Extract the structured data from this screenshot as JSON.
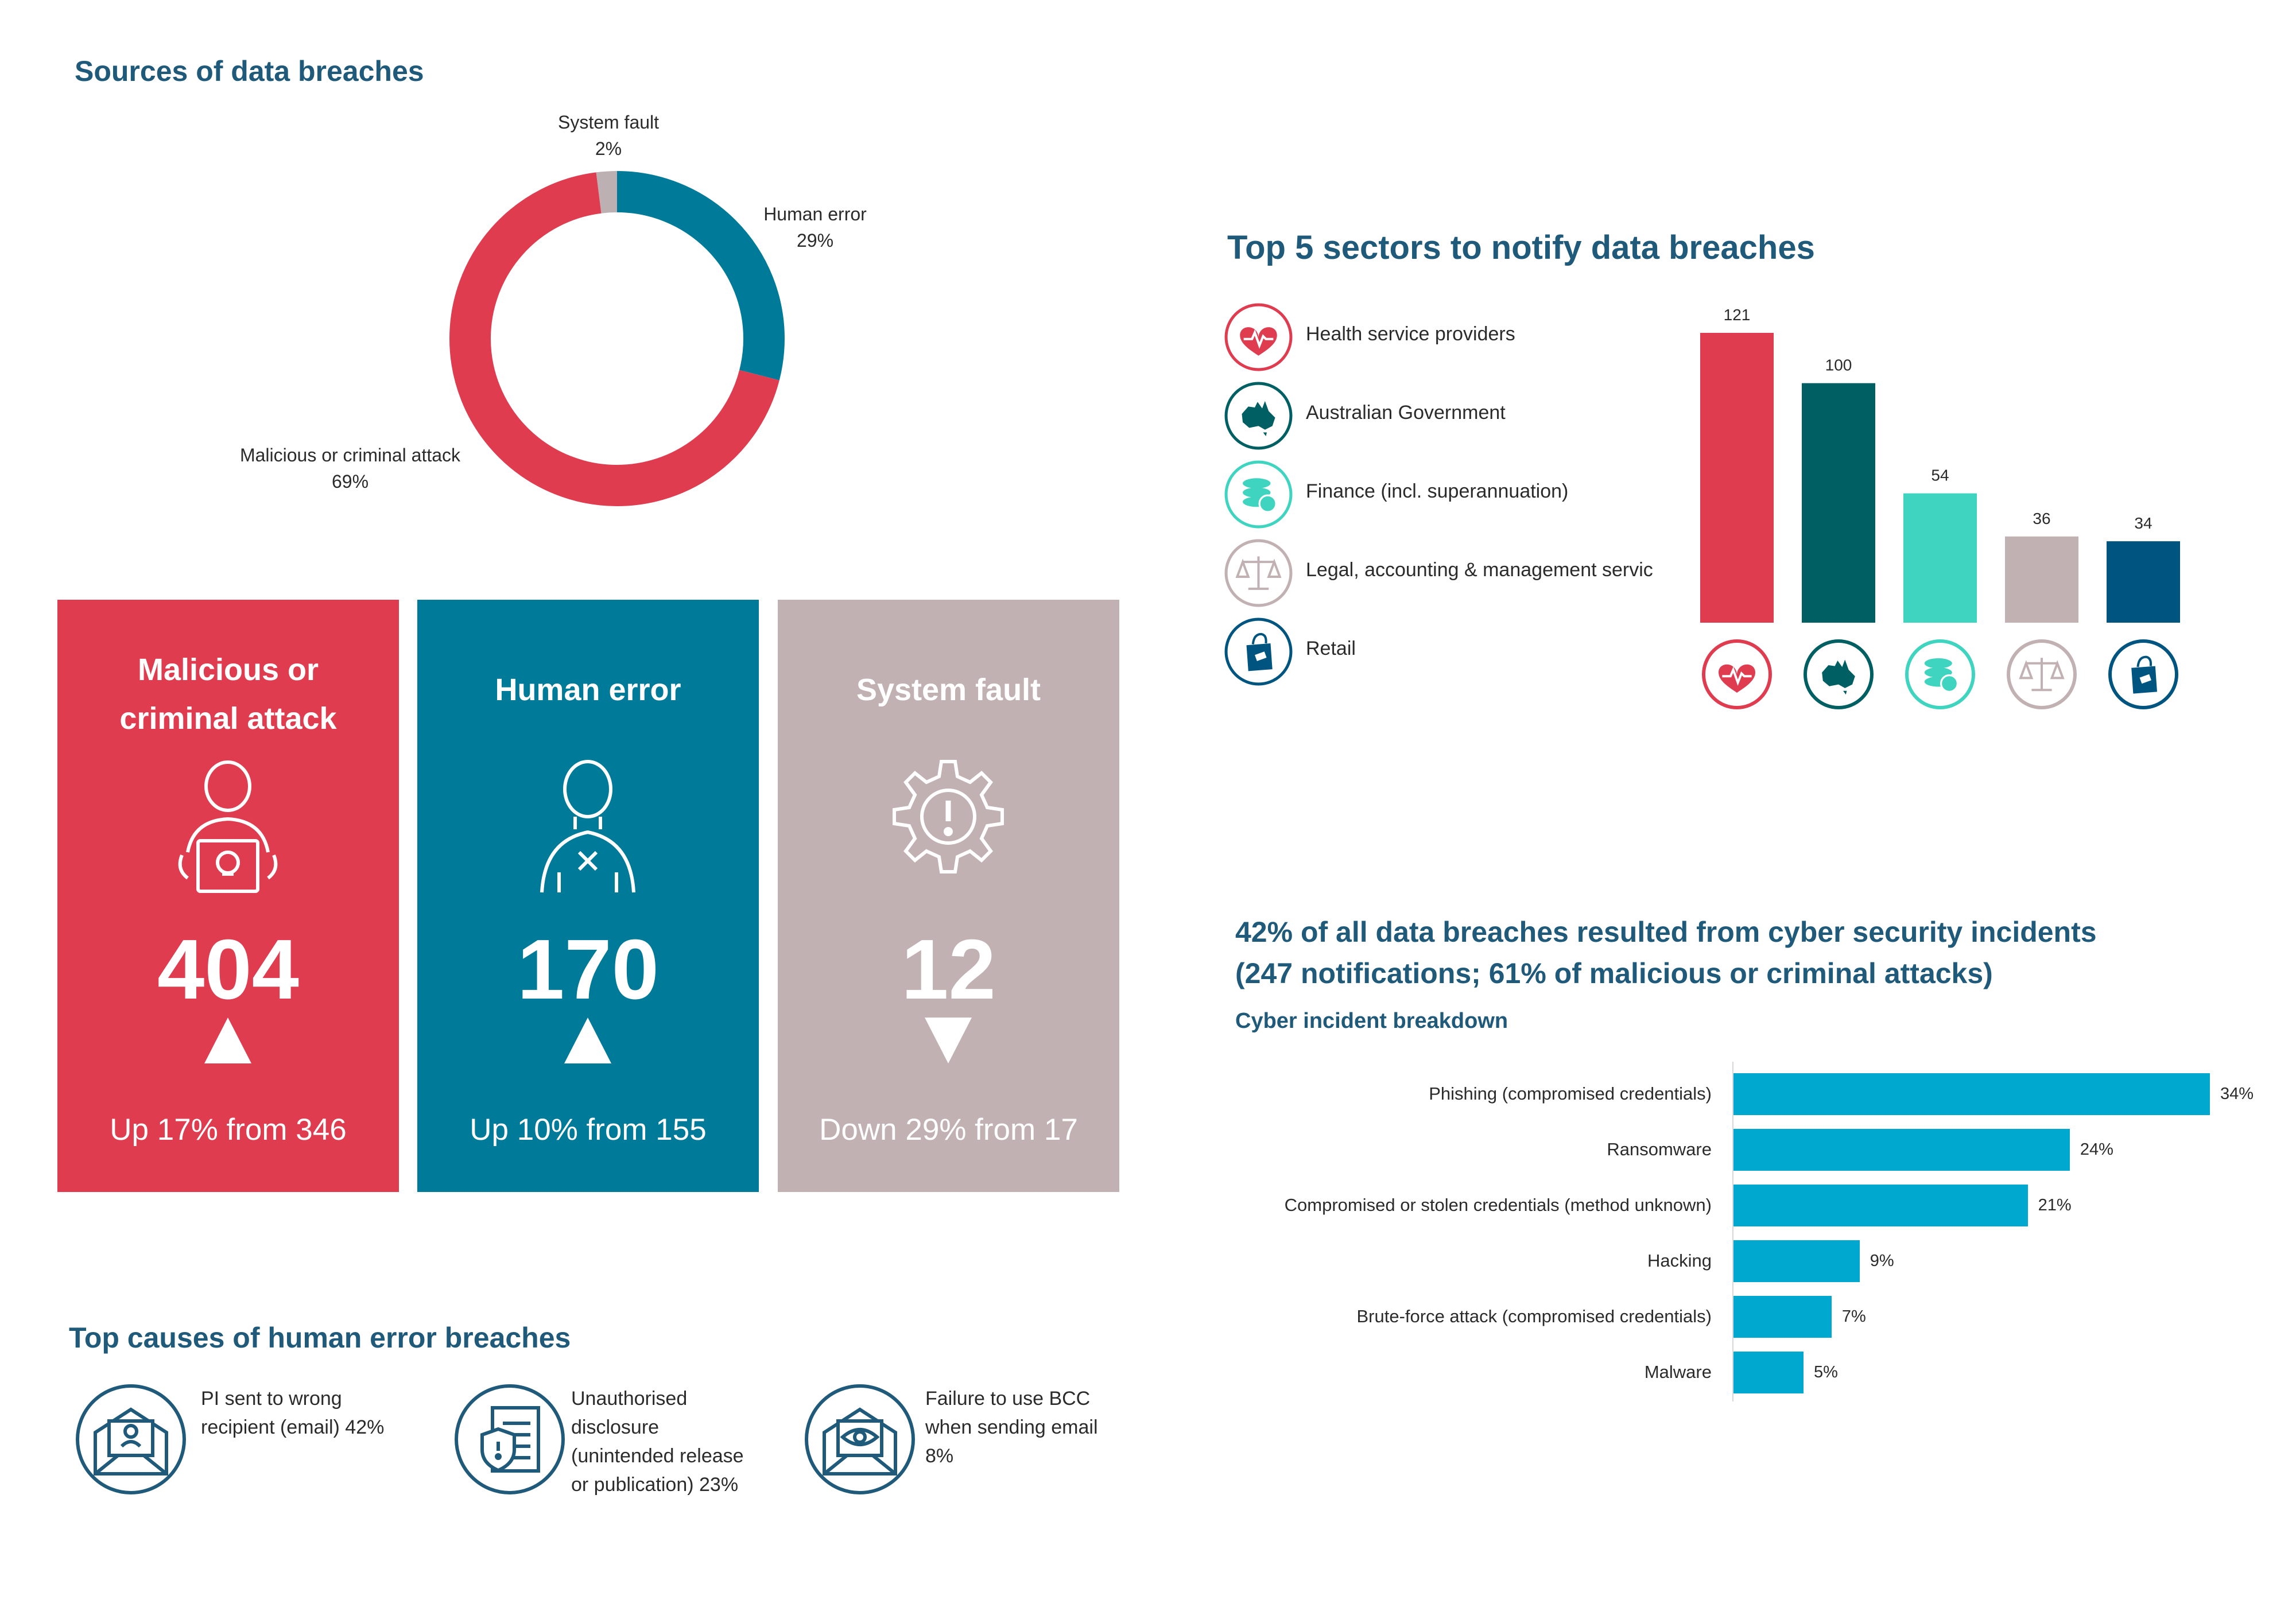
{
  "donut": {
    "title": "Sources of data breaches"
  },
  "cards": [
    {
      "title_line1": "Malicious or",
      "title_line2": "criminal attack",
      "count": "404",
      "trend": "up",
      "change": "Up 17% from 346",
      "color": "#e03c50",
      "icon": "hacker-laptop-icon"
    },
    {
      "title": "Human error",
      "count": "170",
      "trend": "up",
      "change": "Up 10% from 155",
      "color": "#007a99",
      "icon": "person-error-icon"
    },
    {
      "title": "System fault",
      "count": "12",
      "trend": "down",
      "change": "Down 29% from 17",
      "color": "#c1b1b3",
      "icon": "gear-alert-icon"
    }
  ],
  "causes": {
    "title": "Top causes of human error breaches",
    "items": [
      {
        "line1": "PI sent to wrong",
        "line2": "recipient (email) 42%",
        "icon": "envelope-person-icon"
      },
      {
        "line1": "Unauthorised",
        "line2": "disclosure",
        "line3": "(unintended release",
        "line4": "or publication) 23%",
        "icon": "document-shield-icon"
      },
      {
        "line1": "Failure to use BCC",
        "line2": "when sending email",
        "line3": "8%",
        "icon": "envelope-eye-icon"
      }
    ]
  },
  "sectors": {
    "title": "Top 5 sectors to notify data breaches"
  },
  "cyber": {
    "title_line1": "42% of all data breaches resulted from cyber security incidents",
    "title_line2": "(247 notifications; 61% of malicious or criminal attacks)",
    "subtitle": "Cyber incident breakdown"
  },
  "chart_data": [
    {
      "type": "pie",
      "title": "Sources of data breaches",
      "categories": [
        "Malicious or criminal attack",
        "Human error",
        "System fault"
      ],
      "values": [
        69,
        29,
        2
      ],
      "value_labels": [
        "69%",
        "29%",
        "2%"
      ],
      "colors": [
        "#e03c50",
        "#007a99",
        "#bcb0b2"
      ]
    },
    {
      "type": "bar",
      "title": "Top 5 sectors to notify data breaches",
      "categories": [
        "Health service providers",
        "Australian Government",
        "Finance (incl. superannuation)",
        "Legal, accounting & management servic",
        "Retail"
      ],
      "values": [
        121,
        100,
        54,
        36,
        34
      ],
      "colors": [
        "#e03c50",
        "#005f62",
        "#3fd4bf",
        "#c1b1b3",
        "#005580"
      ],
      "icons": [
        "heart-pulse-icon",
        "australia-map-icon",
        "coins-stack-icon",
        "scales-icon",
        "shopping-bag-icon"
      ],
      "ylim": [
        0,
        121
      ]
    },
    {
      "type": "bar",
      "orientation": "horizontal",
      "title": "Cyber incident breakdown",
      "categories": [
        "Phishing (compromised credentials)",
        "Ransomware",
        "Compromised or stolen credentials (method unknown)",
        "Hacking",
        "Brute-force attack (compromised credentials)",
        "Malware"
      ],
      "values": [
        34,
        24,
        21,
        9,
        7,
        5
      ],
      "value_labels": [
        "34%",
        "24%",
        "21%",
        "9%",
        "7%",
        "5%"
      ],
      "color": "#00a8cf",
      "xlim": [
        0,
        34
      ]
    }
  ]
}
